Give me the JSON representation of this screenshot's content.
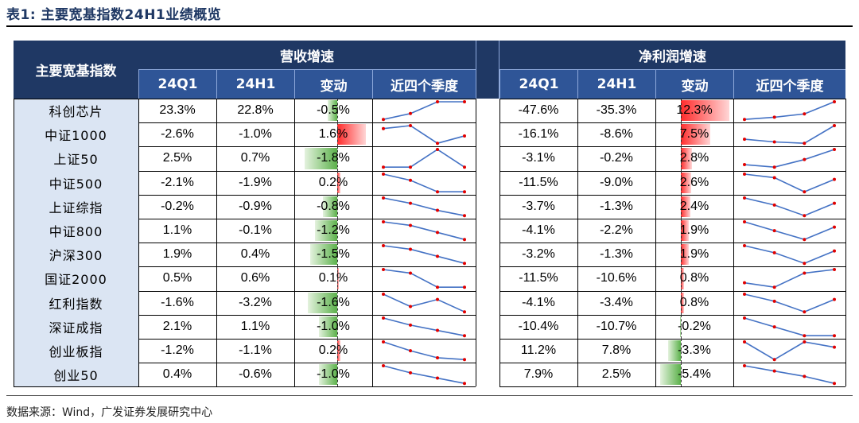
{
  "title": "表1:  主要宽基指数24H1业绩概览",
  "source": "数据来源：Wind，广发证券发展研究中心",
  "header": {
    "index_col": "主要宽基指数",
    "revenue_group": "营收增速",
    "profit_group": "净利润增速",
    "q1": "24Q1",
    "h1": "24H1",
    "change": "变动",
    "trend": "近四个季度"
  },
  "colors": {
    "header_dark": "#1f3864",
    "header_sub": "#2f5597",
    "name_bg": "#dbe5f3",
    "pos_bar": "#ff2b2b",
    "neg_bar": "#5bb14a",
    "spark_line": "#4472c4",
    "spark_dot": "#e00000"
  },
  "rows": [
    {
      "name": "科创芯片",
      "rev_q1": "23.3%",
      "rev_h1": "22.8%",
      "rev_chg": "-0.5%",
      "rev_chg_v": -0.5,
      "rev_trend": [
        1,
        2,
        4,
        4
      ],
      "np_q1": "-47.6%",
      "np_h1": "-35.3%",
      "np_chg": "12.3%",
      "np_chg_v": 12.3,
      "np_trend": [
        1,
        1.2,
        1.5,
        2.6
      ]
    },
    {
      "name": "中证1000",
      "rev_q1": "-2.6%",
      "rev_h1": "-1.0%",
      "rev_chg": "1.6%",
      "rev_chg_v": 1.6,
      "rev_trend": [
        3,
        3.4,
        1,
        2
      ],
      "np_q1": "-16.1%",
      "np_h1": "-8.6%",
      "np_chg": "7.5%",
      "np_chg_v": 7.5,
      "np_trend": [
        2,
        1.8,
        1.7,
        3
      ]
    },
    {
      "name": "上证50",
      "rev_q1": "2.5%",
      "rev_h1": "0.7%",
      "rev_chg": "-1.8%",
      "rev_chg_v": -1.8,
      "rev_trend": [
        1,
        1,
        3.4,
        1
      ],
      "np_q1": "-3.1%",
      "np_h1": "-0.2%",
      "np_chg": "2.8%",
      "np_chg_v": 2.8,
      "np_trend": [
        1.2,
        1,
        1.6,
        2.4
      ]
    },
    {
      "name": "中证500",
      "rev_q1": "-2.1%",
      "rev_h1": "-1.9%",
      "rev_chg": "0.2%",
      "rev_chg_v": 0.2,
      "rev_trend": [
        3,
        2.3,
        1,
        1
      ],
      "np_q1": "-11.5%",
      "np_h1": "-9.0%",
      "np_chg": "2.6%",
      "np_chg_v": 2.6,
      "np_trend": [
        3,
        2.6,
        1,
        2.4
      ]
    },
    {
      "name": "上证综指",
      "rev_q1": "-0.2%",
      "rev_h1": "-0.9%",
      "rev_chg": "-0.8%",
      "rev_chg_v": -0.8,
      "rev_trend": [
        3,
        2.4,
        1.6,
        1
      ],
      "np_q1": "-3.7%",
      "np_h1": "-1.3%",
      "np_chg": "2.4%",
      "np_chg_v": 2.4,
      "np_trend": [
        3,
        2.2,
        1,
        2.4
      ]
    },
    {
      "name": "中证800",
      "rev_q1": "1.1%",
      "rev_h1": "-0.1%",
      "rev_chg": "-1.2%",
      "rev_chg_v": -1.2,
      "rev_trend": [
        3,
        2.6,
        1.8,
        1
      ],
      "np_q1": "-4.1%",
      "np_h1": "-2.2%",
      "np_chg": "1.9%",
      "np_chg_v": 1.9,
      "np_trend": [
        3,
        2,
        1,
        2.4
      ]
    },
    {
      "name": "沪深300",
      "rev_q1": "1.9%",
      "rev_h1": "0.4%",
      "rev_chg": "-1.5%",
      "rev_chg_v": -1.5,
      "rev_trend": [
        3,
        2.6,
        1.8,
        1
      ],
      "np_q1": "-3.2%",
      "np_h1": "-1.3%",
      "np_chg": "1.9%",
      "np_chg_v": 1.9,
      "np_trend": [
        3,
        2.2,
        1,
        2.4
      ]
    },
    {
      "name": "国证2000",
      "rev_q1": "0.5%",
      "rev_h1": "0.6%",
      "rev_chg": "0.1%",
      "rev_chg_v": 0.1,
      "rev_trend": [
        3,
        2.6,
        1,
        1
      ],
      "np_q1": "-11.5%",
      "np_h1": "-10.6%",
      "np_chg": "0.8%",
      "np_chg_v": 0.8,
      "np_trend": [
        1.5,
        1,
        2.6,
        3
      ]
    },
    {
      "name": "红利指数",
      "rev_q1": "-1.6%",
      "rev_h1": "-3.2%",
      "rev_chg": "-1.6%",
      "rev_chg_v": -1.6,
      "rev_trend": [
        3,
        1.6,
        2.4,
        1
      ],
      "np_q1": "-4.1%",
      "np_h1": "-3.4%",
      "np_chg": "0.8%",
      "np_chg_v": 0.8,
      "np_trend": [
        3,
        2.2,
        1,
        2.4
      ]
    },
    {
      "name": "深证成指",
      "rev_q1": "2.1%",
      "rev_h1": "1.1%",
      "rev_chg": "-1.0%",
      "rev_chg_v": -1.0,
      "rev_trend": [
        3,
        2.2,
        1.6,
        1
      ],
      "np_q1": "-10.4%",
      "np_h1": "-10.7%",
      "np_chg": "-0.2%",
      "np_chg_v": -0.2,
      "np_trend": [
        3,
        2,
        1,
        1
      ]
    },
    {
      "name": "创业板指",
      "rev_q1": "-1.2%",
      "rev_h1": "-1.1%",
      "rev_chg": "0.2%",
      "rev_chg_v": 0.2,
      "rev_trend": [
        3,
        2,
        1.2,
        1
      ],
      "np_q1": "11.2%",
      "np_h1": "7.8%",
      "np_chg": "-3.3%",
      "np_chg_v": -3.3,
      "np_trend": [
        3,
        1,
        3,
        2.4
      ]
    },
    {
      "name": "创业50",
      "rev_q1": "0.4%",
      "rev_h1": "-0.6%",
      "rev_chg": "-1.0%",
      "rev_chg_v": -1.0,
      "rev_trend": [
        3,
        2.2,
        1.6,
        1
      ],
      "np_q1": "7.9%",
      "np_h1": "2.5%",
      "np_chg": "-5.4%",
      "np_chg_v": -5.4,
      "np_trend": [
        3,
        2.4,
        1.8,
        1
      ]
    }
  ]
}
